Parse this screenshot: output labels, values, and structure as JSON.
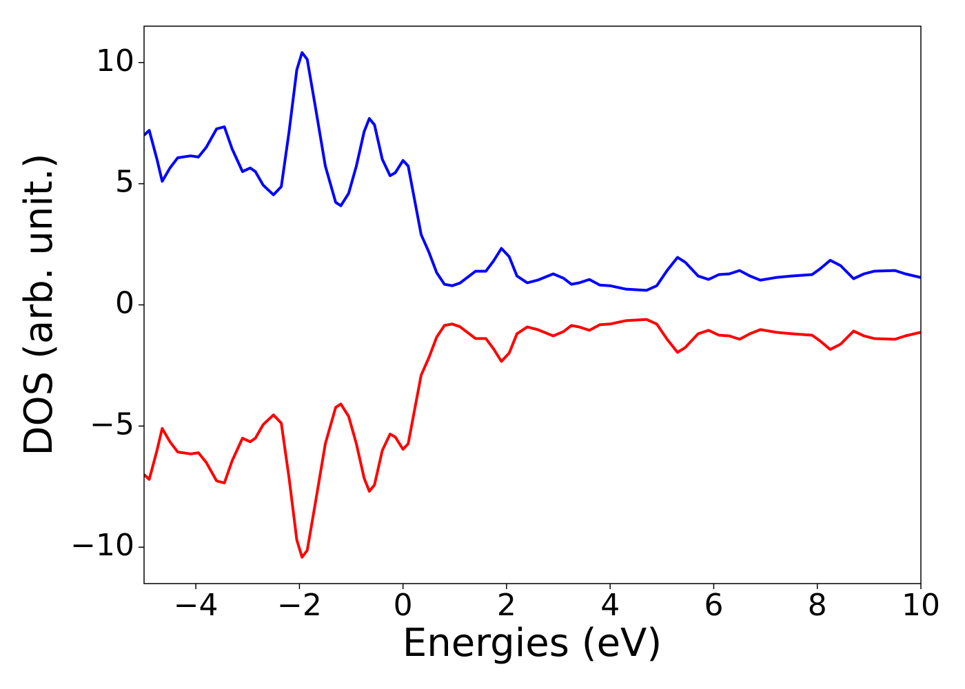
{
  "chart_data": {
    "type": "line",
    "xlabel": "Energies (eV)",
    "ylabel": "DOS (arb. unit.)",
    "x": [
      -5,
      -4.9,
      -4.75,
      -4.65,
      -4.5,
      -4.35,
      -4.1,
      -3.95,
      -3.8,
      -3.6,
      -3.45,
      -3.3,
      -3.1,
      -2.95,
      -2.85,
      -2.7,
      -2.5,
      -2.35,
      -2.2,
      -2.05,
      -1.95,
      -1.85,
      -1.7,
      -1.5,
      -1.3,
      -1.2,
      -1.05,
      -0.9,
      -0.75,
      -0.65,
      -0.55,
      -0.4,
      -0.25,
      -0.15,
      0,
      0.1,
      0.2,
      0.35,
      0.5,
      0.65,
      0.8,
      0.95,
      1.1,
      1.4,
      1.6,
      1.75,
      1.9,
      2.05,
      2.2,
      2.4,
      2.6,
      2.9,
      3.1,
      3.25,
      3.4,
      3.6,
      3.8,
      4,
      4.3,
      4.7,
      4.9,
      5.1,
      5.3,
      5.45,
      5.7,
      5.9,
      6.1,
      6.3,
      6.5,
      6.7,
      6.9,
      7.2,
      7.5,
      7.9,
      8.05,
      8.25,
      8.45,
      8.7,
      8.9,
      9.1,
      9.5,
      9.7,
      10
    ],
    "series": [
      {
        "color": "#0000ff",
        "values": [
          7.0,
          7.2,
          6.0,
          5.1,
          5.65,
          6.07,
          6.15,
          6.1,
          6.5,
          7.26,
          7.35,
          6.44,
          5.5,
          5.65,
          5.5,
          4.94,
          4.54,
          4.88,
          7.15,
          9.7,
          10.41,
          10.13,
          8.28,
          5.73,
          4.23,
          4.09,
          4.6,
          5.73,
          7.15,
          7.69,
          7.43,
          6.01,
          5.33,
          5.45,
          5.96,
          5.73,
          4.6,
          2.9,
          2.18,
          1.33,
          0.85,
          0.79,
          0.9,
          1.39,
          1.39,
          1.82,
          2.33,
          1.99,
          1.19,
          0.91,
          1.02,
          1.28,
          1.1,
          0.85,
          0.91,
          1.05,
          0.82,
          0.79,
          0.65,
          0.6,
          0.79,
          1.42,
          1.96,
          1.76,
          1.19,
          1.05,
          1.25,
          1.28,
          1.42,
          1.19,
          1.02,
          1.13,
          1.19,
          1.25,
          1.48,
          1.84,
          1.62,
          1.08,
          1.28,
          1.39,
          1.42,
          1.28,
          1.13
        ]
      },
      {
        "color": "#ff0000",
        "values": [
          -7.0,
          -7.2,
          -6.0,
          -5.1,
          -5.65,
          -6.07,
          -6.15,
          -6.1,
          -6.5,
          -7.26,
          -7.35,
          -6.44,
          -5.5,
          -5.65,
          -5.5,
          -4.94,
          -4.54,
          -4.88,
          -7.15,
          -9.7,
          -10.41,
          -10.13,
          -8.28,
          -5.73,
          -4.23,
          -4.09,
          -4.6,
          -5.73,
          -7.15,
          -7.69,
          -7.43,
          -6.01,
          -5.33,
          -5.45,
          -5.96,
          -5.73,
          -4.6,
          -2.9,
          -2.18,
          -1.33,
          -0.85,
          -0.79,
          -0.9,
          -1.39,
          -1.39,
          -1.82,
          -2.33,
          -1.99,
          -1.19,
          -0.91,
          -1.02,
          -1.28,
          -1.1,
          -0.85,
          -0.91,
          -1.05,
          -0.82,
          -0.79,
          -0.65,
          -0.6,
          -0.79,
          -1.42,
          -1.96,
          -1.76,
          -1.19,
          -1.05,
          -1.25,
          -1.28,
          -1.42,
          -1.19,
          -1.02,
          -1.13,
          -1.19,
          -1.25,
          -1.48,
          -1.84,
          -1.62,
          -1.08,
          -1.28,
          -1.39,
          -1.42,
          -1.28,
          -1.13
        ]
      }
    ],
    "xlim": [
      -5,
      10
    ],
    "ylim": [
      -11.5,
      11.5
    ],
    "xticks": [
      {
        "value": -4,
        "label": "−4"
      },
      {
        "value": -2,
        "label": "−2"
      },
      0,
      2,
      4,
      6,
      8,
      10
    ],
    "yticks": [
      {
        "value": -10,
        "label": "−10"
      },
      {
        "value": -5,
        "label": "−5"
      },
      0,
      5,
      10
    ],
    "grid": false
  }
}
